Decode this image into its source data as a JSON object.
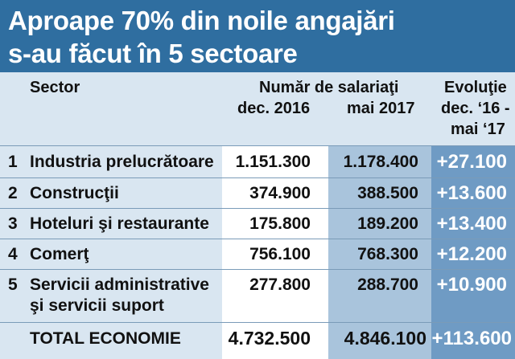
{
  "title": {
    "line1": "Aproape 70% din noile angajări",
    "line2": "s-au făcut în 5 sectoare"
  },
  "headers": {
    "sector": "Sector",
    "employees_group": "Număr de salariaţi",
    "col_dec2016": "dec. 2016",
    "col_mai2017": "mai 2017",
    "evolution_line1": "Evoluţie",
    "evolution_line2": "dec. ‘16 -",
    "evolution_line3": "mai ‘17"
  },
  "chart_data": {
    "type": "table",
    "columns": [
      "Sector",
      "dec. 2016",
      "mai 2017",
      "Evoluţie dec. ‘16 - mai ‘17"
    ],
    "rows": [
      {
        "rank": "1",
        "sector": "Industria prelucrătoare",
        "dec2016": "1.151.300",
        "mai2017": "1.178.400",
        "evolution": "+27.100"
      },
      {
        "rank": "2",
        "sector": "Construcţii",
        "dec2016": "374.900",
        "mai2017": "388.500",
        "evolution": "+13.600"
      },
      {
        "rank": "3",
        "sector": "Hoteluri şi restaurante",
        "dec2016": "175.800",
        "mai2017": "189.200",
        "evolution": "+13.400"
      },
      {
        "rank": "4",
        "sector": "Comerţ",
        "dec2016": "756.100",
        "mai2017": "768.300",
        "evolution": "+12.200"
      },
      {
        "rank": "5",
        "sector": "Servicii administrative",
        "sector_line2": "şi servicii suport",
        "dec2016": "277.800",
        "mai2017": "288.700",
        "evolution": "+10.900"
      }
    ],
    "total": {
      "sector": "TOTAL ECONOMIE",
      "dec2016": "4.732.500",
      "mai2017": "4.846.100",
      "evolution": "+113.600"
    }
  }
}
